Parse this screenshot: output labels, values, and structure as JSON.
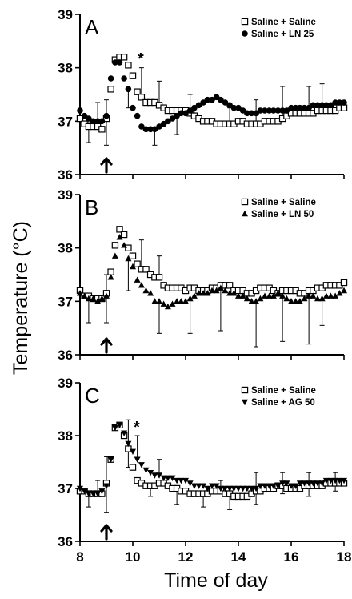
{
  "figure": {
    "ylabel": "Temperature (°C)",
    "xlabel": "Time of day",
    "x_ticks": [
      "8",
      "10",
      "12",
      "14",
      "16",
      "18"
    ],
    "y_ticks": [
      "36",
      "37",
      "38",
      "39"
    ]
  },
  "chart_data": [
    {
      "type": "scatter",
      "panel": "A",
      "xlim": [
        8,
        18
      ],
      "ylim": [
        36,
        39
      ],
      "x_ticks": [
        8,
        10,
        12,
        14,
        16,
        18
      ],
      "y_ticks": [
        36,
        37,
        38,
        39
      ],
      "arrow_at_x": 9,
      "annotation": "*",
      "annotation_x": 10.3,
      "legend_position": "top-right",
      "series": [
        {
          "name": "Saline + Saline",
          "marker": "open-square",
          "x": [
            8,
            8.17,
            8.33,
            8.5,
            8.67,
            8.83,
            9,
            9.17,
            9.33,
            9.5,
            9.67,
            9.83,
            10,
            10.17,
            10.33,
            10.5,
            10.67,
            10.83,
            11,
            11.17,
            11.33,
            11.5,
            11.67,
            11.83,
            12,
            12.17,
            12.33,
            12.5,
            12.67,
            12.83,
            13,
            13.17,
            13.33,
            13.5,
            13.67,
            13.83,
            14,
            14.17,
            14.33,
            14.5,
            14.67,
            14.83,
            15,
            15.17,
            15.33,
            15.5,
            15.67,
            15.83,
            16,
            16.17,
            16.33,
            16.5,
            16.67,
            16.83,
            17,
            17.17,
            17.33,
            17.5,
            17.67,
            17.83,
            18
          ],
          "y": [
            37.05,
            36.95,
            36.9,
            36.9,
            36.9,
            36.85,
            37.05,
            37.6,
            38.15,
            38.2,
            38.2,
            38.05,
            37.85,
            37.55,
            37.45,
            37.35,
            37.35,
            37.35,
            37.3,
            37.25,
            37.2,
            37.2,
            37.2,
            37.2,
            37.2,
            37.15,
            37.1,
            37.05,
            37.0,
            37.0,
            37.0,
            36.95,
            36.95,
            36.95,
            36.95,
            36.95,
            37.0,
            37.0,
            36.95,
            36.95,
            36.95,
            36.95,
            37.0,
            37.0,
            37.0,
            37.0,
            37.05,
            37.1,
            37.15,
            37.15,
            37.15,
            37.15,
            37.15,
            37.15,
            37.2,
            37.2,
            37.2,
            37.2,
            37.2,
            37.25,
            37.25
          ],
          "error_up": {
            "0.6": 0.45,
            "1.0": 0.35,
            "2.4": 0.55,
            "3.0": 0.45,
            "4.2": 0.35,
            "5.6": 0.3,
            "6.6": 0.45,
            "7.6": 0.6,
            "8.6": 0.5,
            "9.2": 0.5
          }
        },
        {
          "name": "Saline + LN 25",
          "marker": "filled-circle",
          "x": [
            8,
            8.17,
            8.33,
            8.5,
            8.67,
            8.83,
            9,
            9.17,
            9.33,
            9.5,
            9.67,
            9.83,
            10,
            10.17,
            10.33,
            10.5,
            10.67,
            10.83,
            11,
            11.17,
            11.33,
            11.5,
            11.67,
            11.83,
            12,
            12.17,
            12.33,
            12.5,
            12.67,
            12.83,
            13,
            13.17,
            13.33,
            13.5,
            13.67,
            13.83,
            14,
            14.17,
            14.33,
            14.5,
            14.67,
            14.83,
            15,
            15.17,
            15.33,
            15.5,
            15.67,
            15.83,
            16,
            16.17,
            16.33,
            16.5,
            16.67,
            16.83,
            17,
            17.17,
            17.33,
            17.5,
            17.67,
            17.83,
            18
          ],
          "y": [
            37.2,
            37.1,
            37.05,
            37.0,
            37.0,
            37.0,
            37.1,
            37.8,
            38.1,
            38.1,
            37.8,
            37.6,
            37.25,
            37.1,
            36.9,
            36.85,
            36.85,
            36.85,
            36.9,
            36.95,
            37.0,
            37.05,
            37.1,
            37.15,
            37.15,
            37.2,
            37.25,
            37.3,
            37.35,
            37.4,
            37.4,
            37.45,
            37.4,
            37.35,
            37.3,
            37.25,
            37.25,
            37.2,
            37.15,
            37.15,
            37.15,
            37.2,
            37.2,
            37.2,
            37.2,
            37.2,
            37.2,
            37.2,
            37.25,
            37.25,
            37.25,
            37.25,
            37.25,
            37.3,
            37.3,
            37.3,
            37.3,
            37.3,
            37.35,
            37.35,
            37.35
          ],
          "error_down": {
            "0.4": 0.45,
            "1.0": 0.55,
            "1.8": 0.35,
            "2.8": 0.3,
            "3.6": 0.35,
            "4.4": 0.2
          }
        }
      ]
    },
    {
      "type": "scatter",
      "panel": "B",
      "xlim": [
        8,
        18
      ],
      "ylim": [
        36,
        39
      ],
      "x_ticks": [
        8,
        10,
        12,
        14,
        16,
        18
      ],
      "y_ticks": [
        36,
        37,
        38,
        39
      ],
      "arrow_at_x": 9,
      "legend_position": "top-right",
      "series": [
        {
          "name": "Saline + Saline",
          "marker": "open-square",
          "x": [
            8,
            8.17,
            8.33,
            8.5,
            8.67,
            8.83,
            9,
            9.17,
            9.33,
            9.5,
            9.67,
            9.83,
            10,
            10.17,
            10.33,
            10.5,
            10.67,
            10.83,
            11,
            11.17,
            11.33,
            11.5,
            11.67,
            11.83,
            12,
            12.17,
            12.33,
            12.5,
            12.67,
            12.83,
            13,
            13.17,
            13.33,
            13.5,
            13.67,
            13.83,
            14,
            14.17,
            14.33,
            14.5,
            14.67,
            14.83,
            15,
            15.17,
            15.33,
            15.5,
            15.67,
            15.83,
            16,
            16.17,
            16.33,
            16.5,
            16.67,
            16.83,
            17,
            17.17,
            17.33,
            17.5,
            17.67,
            17.83,
            18
          ],
          "y": [
            37.2,
            37.1,
            37.1,
            37.05,
            37.05,
            37.05,
            37.15,
            37.55,
            38.05,
            38.35,
            38.25,
            38.0,
            37.85,
            37.7,
            37.6,
            37.6,
            37.5,
            37.45,
            37.45,
            37.3,
            37.25,
            37.25,
            37.25,
            37.25,
            37.2,
            37.25,
            37.25,
            37.2,
            37.2,
            37.2,
            37.25,
            37.25,
            37.3,
            37.3,
            37.3,
            37.2,
            37.2,
            37.2,
            37.15,
            37.15,
            37.2,
            37.25,
            37.25,
            37.25,
            37.2,
            37.15,
            37.2,
            37.2,
            37.2,
            37.2,
            37.15,
            37.15,
            37.2,
            37.2,
            37.25,
            37.25,
            37.3,
            37.3,
            37.3,
            37.3,
            37.35
          ],
          "error_up": {
            "1.0": 0.35,
            "2.4": 0.55,
            "3.0": 0.4
          }
        },
        {
          "name": "Saline + LN 50",
          "marker": "filled-triangle",
          "x": [
            8,
            8.17,
            8.33,
            8.5,
            8.67,
            8.83,
            9,
            9.17,
            9.33,
            9.5,
            9.67,
            9.83,
            10,
            10.17,
            10.33,
            10.5,
            10.67,
            10.83,
            11,
            11.17,
            11.33,
            11.5,
            11.67,
            11.83,
            12,
            12.17,
            12.33,
            12.5,
            12.67,
            12.83,
            13,
            13.17,
            13.33,
            13.5,
            13.67,
            13.83,
            14,
            14.17,
            14.33,
            14.5,
            14.67,
            14.83,
            15,
            15.17,
            15.33,
            15.5,
            15.67,
            15.83,
            16,
            16.17,
            16.33,
            16.5,
            16.67,
            16.83,
            17,
            17.17,
            17.33,
            17.5,
            17.67,
            17.83,
            18
          ],
          "y": [
            37.15,
            37.1,
            37.05,
            37.05,
            37.0,
            37.05,
            37.1,
            37.45,
            37.85,
            38.2,
            38.05,
            37.8,
            37.65,
            37.4,
            37.3,
            37.2,
            37.15,
            37.0,
            37.0,
            36.95,
            36.9,
            36.95,
            37.0,
            37.0,
            37.0,
            37.05,
            37.1,
            37.15,
            37.15,
            37.15,
            37.2,
            37.2,
            37.25,
            37.2,
            37.15,
            37.15,
            37.1,
            37.1,
            37.05,
            37.0,
            37.0,
            37.05,
            37.1,
            37.1,
            37.1,
            37.15,
            37.1,
            37.05,
            37.0,
            37.0,
            37.0,
            37.05,
            37.1,
            37.1,
            37.05,
            37.05,
            37.1,
            37.1,
            37.1,
            37.15,
            37.2
          ],
          "error_down": {
            "0.4": 0.45,
            "1.0": 0.5,
            "1.8": 0.6,
            "3.0": 0.6,
            "4.2": 0.65,
            "5.4": 0.8,
            "6.6": 0.85,
            "7.6": 0.85,
            "8.6": 0.9,
            "9.2": 0.5
          }
        }
      ]
    },
    {
      "type": "scatter",
      "panel": "C",
      "xlim": [
        8,
        18
      ],
      "ylim": [
        36,
        39
      ],
      "x_ticks": [
        8,
        10,
        12,
        14,
        16,
        18
      ],
      "y_ticks": [
        36,
        37,
        38,
        39
      ],
      "arrow_at_x": 9,
      "annotation": "*",
      "annotation_x": 10.15,
      "legend_position": "top-right",
      "series": [
        {
          "name": "Saline + Saline",
          "marker": "open-square",
          "x": [
            8,
            8.17,
            8.33,
            8.5,
            8.67,
            8.83,
            9,
            9.17,
            9.33,
            9.5,
            9.67,
            9.83,
            10,
            10.17,
            10.33,
            10.5,
            10.67,
            10.83,
            11,
            11.17,
            11.33,
            11.5,
            11.67,
            11.83,
            12,
            12.17,
            12.33,
            12.5,
            12.67,
            12.83,
            13,
            13.17,
            13.33,
            13.5,
            13.67,
            13.83,
            14,
            14.17,
            14.33,
            14.5,
            14.67,
            14.83,
            15,
            15.17,
            15.33,
            15.5,
            15.67,
            15.83,
            16,
            16.17,
            16.33,
            16.5,
            16.67,
            16.83,
            17,
            17.17,
            17.33,
            17.5,
            17.67,
            17.83,
            18
          ],
          "y": [
            36.95,
            36.95,
            36.9,
            36.9,
            36.9,
            36.9,
            37.1,
            37.55,
            38.15,
            38.2,
            38.0,
            37.75,
            37.4,
            37.15,
            37.1,
            37.05,
            37.05,
            37.05,
            37.1,
            37.1,
            37.05,
            37.0,
            37.0,
            36.95,
            36.95,
            36.9,
            36.9,
            36.9,
            36.9,
            36.9,
            36.95,
            36.95,
            36.95,
            36.9,
            36.9,
            36.85,
            36.85,
            36.85,
            36.85,
            36.9,
            36.95,
            36.95,
            37.0,
            37.0,
            37.0,
            37.05,
            37.05,
            37.0,
            37.0,
            37.0,
            37.0,
            37.05,
            37.05,
            37.05,
            37.05,
            37.05,
            37.1,
            37.1,
            37.1,
            37.1,
            37.1
          ],
          "error_down": {
            "0.4": 0.25,
            "1.0": 0.55,
            "1.8": 0.35,
            "2.6": 0.2,
            "3.6": 0.3,
            "4.6": 0.25,
            "5.6": 0.3,
            "6.6": 0.25,
            "7.6": 0.15,
            "8.6": 0.2,
            "9.6": 0.15
          }
        },
        {
          "name": "Saline + AG 50",
          "marker": "filled-inverted-triangle",
          "x": [
            8,
            8.17,
            8.33,
            8.5,
            8.67,
            8.83,
            9,
            9.17,
            9.33,
            9.5,
            9.67,
            9.83,
            10,
            10.17,
            10.33,
            10.5,
            10.67,
            10.83,
            11,
            11.17,
            11.33,
            11.5,
            11.67,
            11.83,
            12,
            12.17,
            12.33,
            12.5,
            12.67,
            12.83,
            13,
            13.17,
            13.33,
            13.5,
            13.67,
            13.83,
            14,
            14.17,
            14.33,
            14.5,
            14.67,
            14.83,
            15,
            15.17,
            15.33,
            15.5,
            15.67,
            15.83,
            16,
            16.17,
            16.33,
            16.5,
            16.67,
            16.83,
            17,
            17.17,
            17.33,
            17.5,
            17.67,
            17.83,
            18
          ],
          "y": [
            37.0,
            36.95,
            36.9,
            36.9,
            36.9,
            36.95,
            37.05,
            37.55,
            38.15,
            38.2,
            38.05,
            37.85,
            37.7,
            37.55,
            37.45,
            37.35,
            37.3,
            37.25,
            37.25,
            37.2,
            37.2,
            37.2,
            37.15,
            37.15,
            37.15,
            37.1,
            37.05,
            37.05,
            37.05,
            37.0,
            37.05,
            37.05,
            37.0,
            37.0,
            37.0,
            37.0,
            37.0,
            37.0,
            37.0,
            37.0,
            37.0,
            37.05,
            37.05,
            37.05,
            37.05,
            37.05,
            37.1,
            37.1,
            37.05,
            37.05,
            37.1,
            37.1,
            37.1,
            37.1,
            37.1,
            37.1,
            37.15,
            37.15,
            37.15,
            37.15,
            37.15
          ],
          "error_up": {
            "0.6": 0.25,
            "1.0": 0.55,
            "1.8": 0.45,
            "2.2": 0.45,
            "3.0": 0.3,
            "5.4": 0.15,
            "6.6": 0.3,
            "7.6": 0.2,
            "8.6": 0.2,
            "9.6": 0.15
          }
        }
      ]
    }
  ]
}
